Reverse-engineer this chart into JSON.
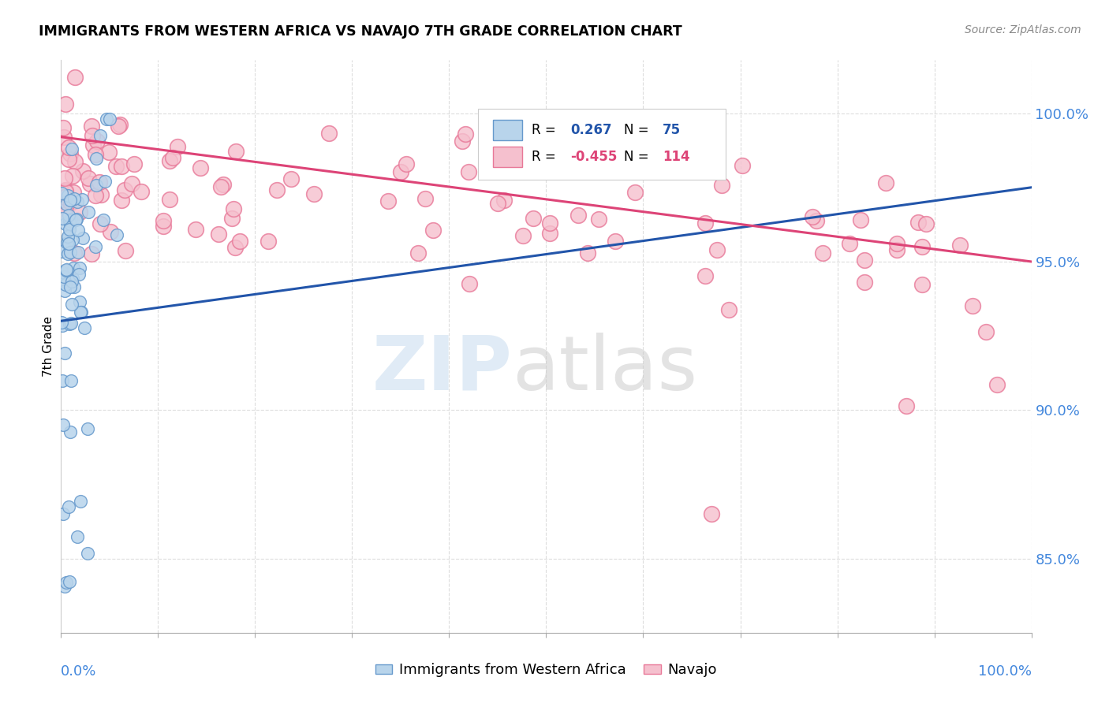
{
  "title": "IMMIGRANTS FROM WESTERN AFRICA VS NAVAJO 7TH GRADE CORRELATION CHART",
  "source": "Source: ZipAtlas.com",
  "ylabel": "7th Grade",
  "ylabel_right_ticks": [
    85.0,
    90.0,
    95.0,
    100.0
  ],
  "xmin": 0.0,
  "xmax": 100.0,
  "ymin": 82.5,
  "ymax": 101.8,
  "blue_R": 0.267,
  "blue_N": 75,
  "pink_R": -0.455,
  "pink_N": 114,
  "blue_color": "#b8d4eb",
  "blue_edge": "#6699cc",
  "pink_color": "#f5c0ce",
  "pink_edge": "#e87898",
  "blue_line_color": "#2255aa",
  "pink_line_color": "#dd4477",
  "blue_line_x0": 0.0,
  "blue_line_x1": 100.0,
  "blue_line_y0": 93.0,
  "blue_line_y1": 97.5,
  "pink_line_x0": 0.0,
  "pink_line_x1": 100.0,
  "pink_line_y0": 99.2,
  "pink_line_y1": 95.0,
  "watermark_zip_color": "#ccdff0",
  "watermark_atlas_color": "#cccccc",
  "right_tick_color": "#4488dd",
  "bottom_label_color": "#4488dd",
  "grid_color": "#dddddd",
  "source_color": "#888888"
}
